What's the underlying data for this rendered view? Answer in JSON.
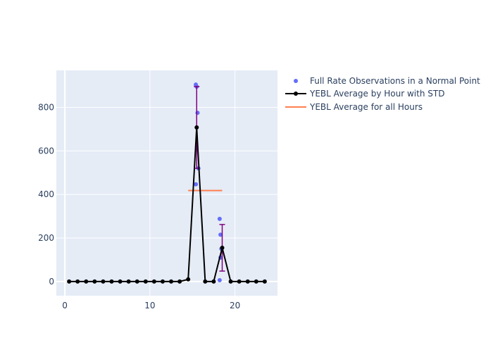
{
  "chart_data": {
    "type": "line",
    "title": "",
    "xlabel": "",
    "ylabel": "",
    "xlim": [
      -1,
      25
    ],
    "ylim": [
      -65,
      970
    ],
    "x_ticks": [
      0,
      10,
      20
    ],
    "y_ticks": [
      0,
      200,
      400,
      600,
      800
    ],
    "grid": true,
    "legend_position": "top-right, outside plot",
    "colors": {
      "background": "#E5ECF6",
      "grid": "#FFFFFF",
      "observations": "#636EFA",
      "average_line": "#000000",
      "error_bars": "#800080",
      "overall_average": "#FF7F50"
    },
    "series": [
      {
        "name": "Full Rate Observations in a Normal Point",
        "type": "scatter",
        "x": [
          15.4,
          15.5,
          15.6,
          15.7,
          15.4,
          18.2,
          18.3,
          18.4,
          18.3,
          18.2
        ],
        "y": [
          905,
          895,
          775,
          520,
          447,
          288,
          215,
          150,
          110,
          6
        ]
      },
      {
        "name": "YEBL Average by Hour with STD",
        "type": "line",
        "x": [
          0.5,
          1.5,
          2.5,
          3.5,
          4.5,
          5.5,
          6.5,
          7.5,
          8.5,
          9.5,
          10.5,
          11.5,
          12.5,
          13.5,
          14.5,
          15.5,
          16.5,
          17.5,
          18.5,
          19.5,
          20.5,
          21.5,
          22.5,
          23.5
        ],
        "y": [
          0,
          0,
          0,
          0,
          0,
          0,
          0,
          0,
          0,
          0,
          0,
          0,
          0,
          0,
          10,
          708,
          0,
          0,
          155,
          0,
          0,
          0,
          0,
          0
        ],
        "error": [
          0,
          0,
          0,
          0,
          0,
          0,
          0,
          0,
          0,
          0,
          0,
          0,
          0,
          0,
          0,
          188,
          0,
          0,
          107,
          0,
          0,
          0,
          0,
          0
        ]
      },
      {
        "name": "YEBL Average for all Hours",
        "type": "line",
        "x": [
          14.5,
          18.5
        ],
        "y": [
          418,
          418
        ]
      }
    ]
  }
}
